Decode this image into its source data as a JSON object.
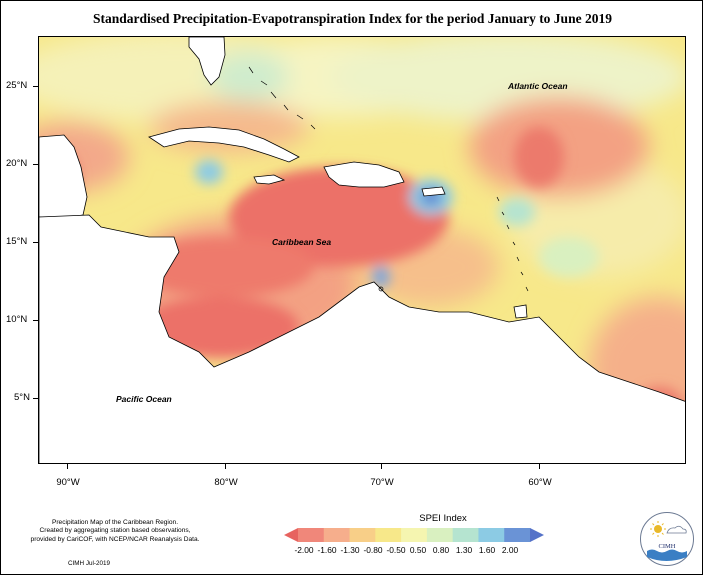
{
  "title": "Standardised Precipitation-Evapotranspiration Index for the period January to June 2019",
  "map": {
    "latitude_labels": [
      "25°N",
      "20°N",
      "15°N",
      "10°N",
      "5°N"
    ],
    "longitude_labels": [
      "90°W",
      "80°W",
      "70°W",
      "60°W"
    ],
    "region_labels": {
      "atlantic": "Atlantic Ocean",
      "caribbean": "Caribbean Sea",
      "pacific": "Pacific Ocean"
    }
  },
  "legend": {
    "title": "SPEI Index",
    "labels": [
      "-2.00",
      "-1.60",
      "-1.30",
      "-0.80",
      "-0.50",
      "0.50",
      "0.80",
      "1.30",
      "1.60",
      "2.00"
    ],
    "colors": [
      "#e7635f",
      "#f0877a",
      "#f6ae8c",
      "#f8cf88",
      "#f7e88a",
      "#f5f5b0",
      "#d9f0c0",
      "#b5e4d0",
      "#8ccbe4",
      "#6a93d6",
      "#5572c8"
    ]
  },
  "credits": {
    "lines": [
      "Precipitation Map of the Caribbean Region.",
      "Created by aggregating station based observations,",
      "provided by CariCOF, with NCEP/NCAR Reanalysis Data."
    ],
    "date": "CIMH Jul-2019"
  },
  "logo": {
    "text": "CIMH"
  }
}
